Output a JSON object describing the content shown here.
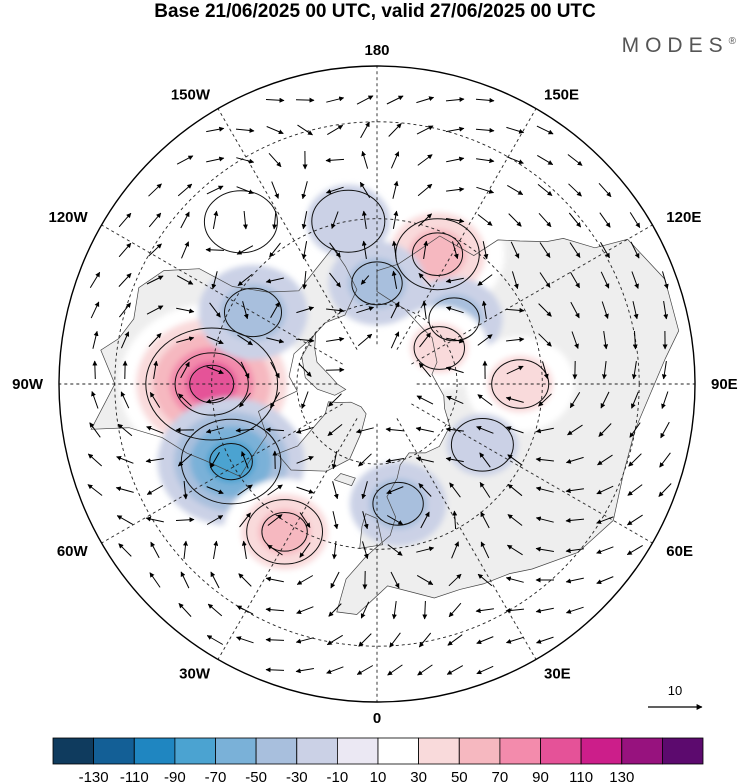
{
  "title": "Base 21/06/2025 00 UTC, valid 27/06/2025 00 UTC",
  "brand": "MODES",
  "brand_mark": "®",
  "map": {
    "projection": "north-polar-stereographic",
    "longitude_labels": [
      {
        "text": "180",
        "lon": 180
      },
      {
        "text": "150E",
        "lon": 150
      },
      {
        "text": "120E",
        "lon": 120
      },
      {
        "text": "90E",
        "lon": 90
      },
      {
        "text": "60E",
        "lon": 60
      },
      {
        "text": "30E",
        "lon": 30
      },
      {
        "text": "0",
        "lon": 0
      },
      {
        "text": "30W",
        "lon": -30
      },
      {
        "text": "60W",
        "lon": -60
      },
      {
        "text": "90W",
        "lon": -90
      },
      {
        "text": "120W",
        "lon": -120
      },
      {
        "text": "150W",
        "lon": -150
      }
    ],
    "anomaly_centers": [
      {
        "lon": -90,
        "lat": 50,
        "value": 110
      },
      {
        "lon": -120,
        "lat": 55,
        "value": -50
      },
      {
        "lon": -62,
        "lat": 50,
        "value": -80
      },
      {
        "lon": -32,
        "lat": 48,
        "value": 60
      },
      {
        "lon": 10,
        "lat": 60,
        "value": -40
      },
      {
        "lon": 155,
        "lat": 55,
        "value": 70
      },
      {
        "lon": 130,
        "lat": 65,
        "value": -40
      },
      {
        "lon": 90,
        "lat": 55,
        "value": 50
      },
      {
        "lon": 120,
        "lat": 72,
        "value": 40
      },
      {
        "lon": 60,
        "lat": 60,
        "value": -20
      },
      {
        "lon": -170,
        "lat": 50,
        "value": -30
      },
      {
        "lon": 180,
        "lat": 65,
        "value": -40
      },
      {
        "lon": -140,
        "lat": 40,
        "value": 30
      }
    ],
    "wind_reference_label": "10",
    "colors": {
      "land": "#eeeeee",
      "grid": "#222222",
      "coast": "#444444",
      "contour": "#111111"
    }
  },
  "colorbar": {
    "colors": [
      "#0f3b5e",
      "#135f96",
      "#1f86c1",
      "#4ba3d1",
      "#7ab1d8",
      "#a8bfdd",
      "#cbd1e6",
      "#ebe8f3",
      "#ffffff",
      "#f9dadb",
      "#f6b8c0",
      "#f38bac",
      "#e55298",
      "#cc1e8a",
      "#97127e",
      "#5c0a6e"
    ],
    "tick_labels": [
      "-130",
      "-110",
      "-90",
      "-70",
      "-50",
      "-30",
      "-10",
      "10",
      "30",
      "50",
      "70",
      "90",
      "110",
      "130"
    ]
  }
}
